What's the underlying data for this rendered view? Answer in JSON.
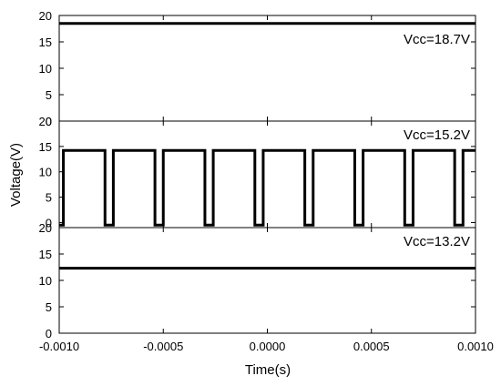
{
  "chart_data": {
    "type": "line",
    "xlabel": "Time(s)",
    "ylabel": "Voltage(V)",
    "xlim": [
      -0.001,
      0.001
    ],
    "xticks": [
      -0.001,
      -0.0005,
      0.0,
      0.0005,
      0.001
    ],
    "xtick_labels": [
      "-0.0010",
      "-0.0005",
      "0.0000",
      "0.0005",
      "0.0010"
    ],
    "shared_x": true,
    "stacked_panels": true,
    "color": "#000000",
    "grid": false,
    "panels": [
      {
        "annotation": "Vcc=18.7V",
        "ylim": [
          0,
          20
        ],
        "yticks": [
          0,
          5,
          10,
          15,
          20
        ],
        "ytick_labels": [
          "0",
          "5",
          "10",
          "15",
          "20"
        ],
        "series": [
          {
            "x": [
              -0.001,
              0.001
            ],
            "y": [
              18.5,
              18.5
            ]
          }
        ]
      },
      {
        "annotation": "Vcc=15.2V",
        "ylim": [
          -1,
          20
        ],
        "yticks": [
          0,
          5,
          10,
          15,
          20
        ],
        "ytick_labels": [
          "0",
          "5",
          "10",
          "15",
          "20"
        ],
        "series": [
          {
            "x": [
              -0.001,
              -0.00098,
              -0.00098,
              -0.00078,
              -0.00078,
              -0.00074,
              -0.00074,
              -0.00054,
              -0.00054,
              -0.0005,
              -0.0005,
              -0.0003,
              -0.0003,
              -0.00026,
              -0.00026,
              -6e-05,
              -6e-05,
              -2e-05,
              -2e-05,
              0.00018,
              0.00018,
              0.00022,
              0.00022,
              0.00042,
              0.00042,
              0.00046,
              0.00046,
              0.00066,
              0.00066,
              0.0007,
              0.0007,
              0.0009,
              0.0009,
              0.00094,
              0.00094,
              0.001
            ],
            "y": [
              -0.5,
              -0.5,
              14.2,
              14.2,
              -0.5,
              -0.5,
              14.2,
              14.2,
              -0.5,
              -0.5,
              14.2,
              14.2,
              -0.5,
              -0.5,
              14.2,
              14.2,
              -0.5,
              -0.5,
              14.2,
              14.2,
              -0.5,
              -0.5,
              14.2,
              14.2,
              -0.5,
              -0.5,
              14.2,
              14.2,
              -0.5,
              -0.5,
              14.2,
              14.2,
              -0.5,
              -0.5,
              14.2,
              14.2
            ]
          }
        ]
      },
      {
        "annotation": "Vcc=13.2V",
        "ylim": [
          0,
          20
        ],
        "yticks": [
          0,
          5,
          10,
          15,
          20
        ],
        "ytick_labels": [
          "0",
          "5",
          "10",
          "15",
          "20"
        ],
        "series": [
          {
            "x": [
              -0.001,
              0.001
            ],
            "y": [
              12.3,
              12.3
            ]
          }
        ]
      }
    ]
  }
}
